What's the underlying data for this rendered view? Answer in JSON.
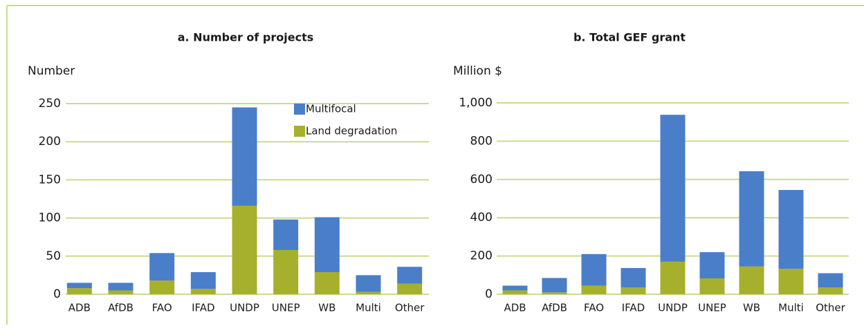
{
  "chart_data": [
    {
      "type": "bar",
      "stacked": true,
      "title": "a. Number of projects",
      "y_label": "Number",
      "categories": [
        "ADB",
        "AfDB",
        "FAO",
        "IFAD",
        "UNDP",
        "UNEP",
        "WB",
        "Multi",
        "Other"
      ],
      "series": [
        {
          "name": "Multifocal",
          "color": "#4a7ec8",
          "values": [
            7,
            10,
            36,
            22,
            129,
            40,
            72,
            22,
            22
          ]
        },
        {
          "name": "Land degradation",
          "color": "#a7b02c",
          "values": [
            8,
            5,
            18,
            7,
            116,
            58,
            29,
            3,
            14
          ]
        }
      ],
      "ylim": [
        0,
        250
      ],
      "yticks": [
        0,
        50,
        100,
        150,
        200,
        250
      ],
      "grid": true,
      "legend": "top-right"
    },
    {
      "type": "bar",
      "stacked": true,
      "title": "b. Total GEF grant",
      "y_label": "Million $",
      "categories": [
        "ADB",
        "AfDB",
        "FAO",
        "IFAD",
        "UNDP",
        "UNEP",
        "WB",
        "Multi",
        "Other"
      ],
      "series": [
        {
          "name": "Multifocal",
          "color": "#4a7ec8",
          "values": [
            25,
            75,
            165,
            102,
            768,
            137,
            498,
            412,
            75
          ]
        },
        {
          "name": "Land degradation",
          "color": "#a7b02c",
          "values": [
            20,
            10,
            45,
            35,
            170,
            83,
            145,
            133,
            35
          ]
        }
      ],
      "ylim": [
        0,
        1000
      ],
      "yticks": [
        0,
        200,
        400,
        600,
        800,
        {
          "value": 1000,
          "label": "1,000"
        }
      ],
      "grid": true
    }
  ]
}
